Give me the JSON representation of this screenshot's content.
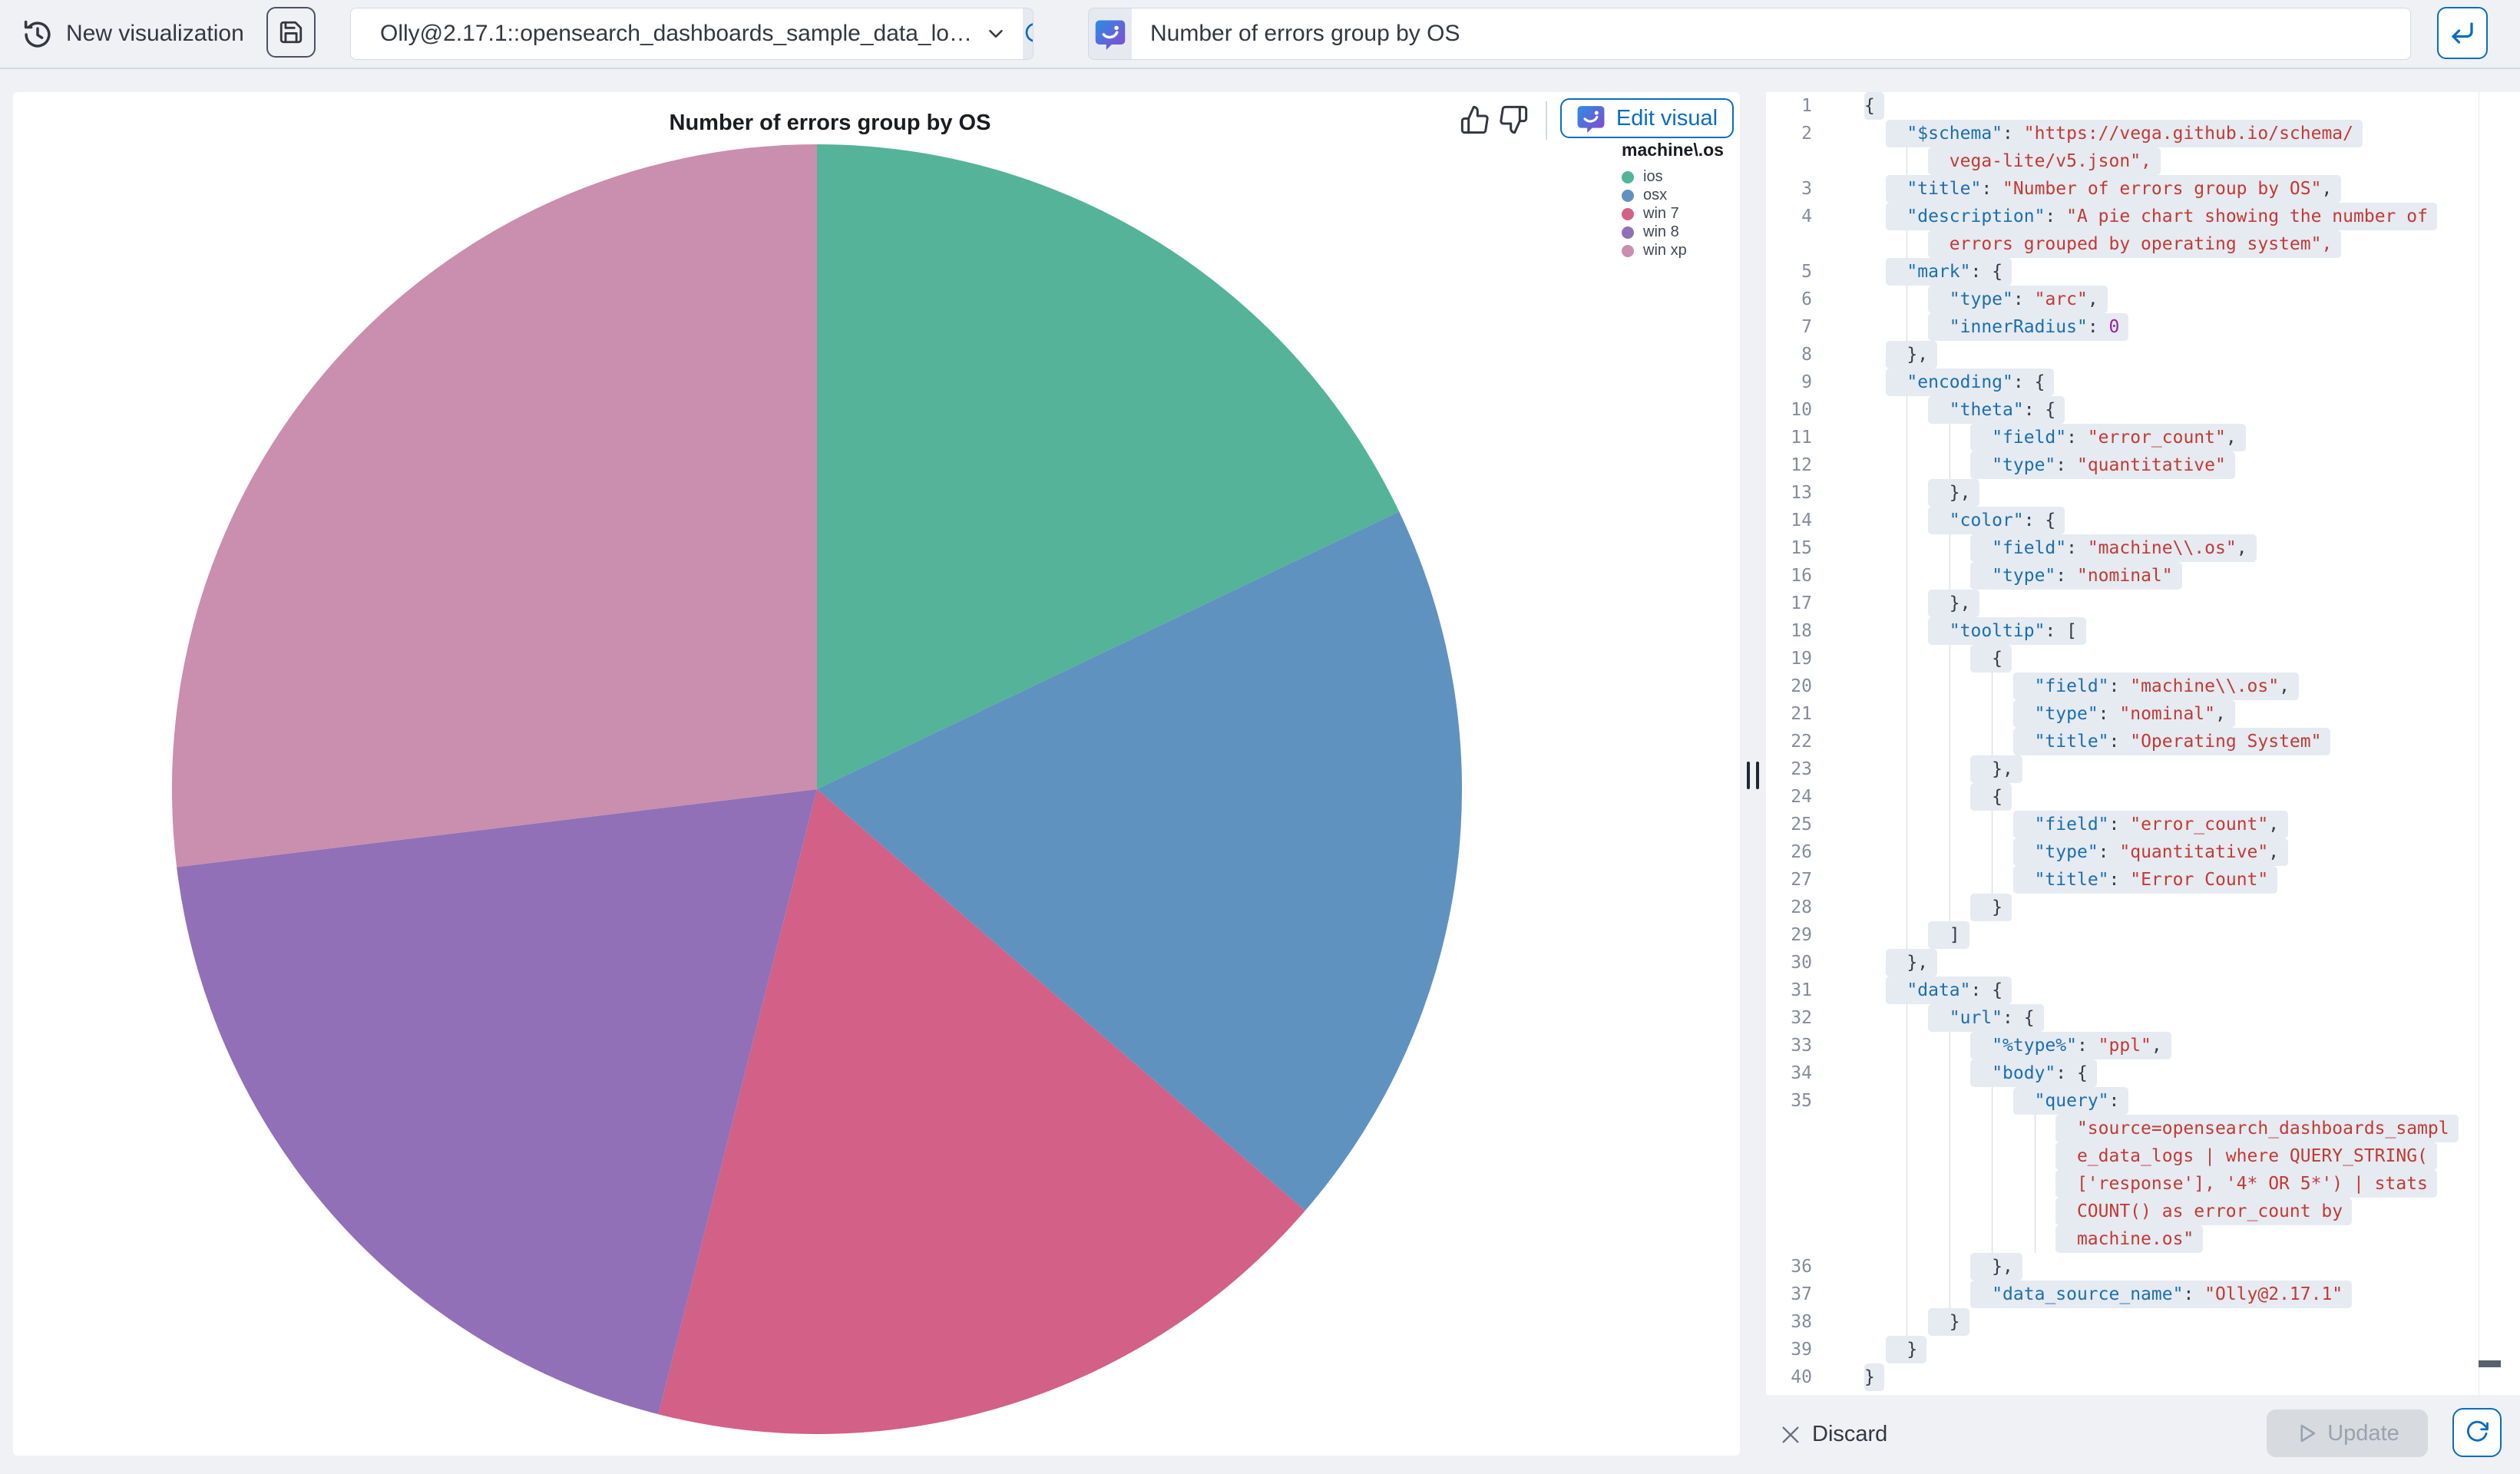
{
  "topbar": {
    "new_viz_label": "New visualization",
    "datasource_value": "Olly@2.17.1::opensearch_dashboards_sample_data_lo…",
    "query_value": "Number of errors group by OS"
  },
  "chart_panel": {
    "title": "Number of errors group by OS",
    "edit_visual_label": "Edit visual",
    "legend": {
      "title": "machine\\.os",
      "items": [
        "ios",
        "osx",
        "win 7",
        "win 8",
        "win xp"
      ]
    }
  },
  "chart_data": {
    "type": "pie",
    "title": "Number of errors group by OS",
    "legend_title": "machine\\.os",
    "categories": [
      "ios",
      "osx",
      "win 7",
      "win 8",
      "win xp"
    ],
    "percentages": [
      17.9,
      18.4,
      17.6,
      19.1,
      26.9
    ],
    "angles_deg": [
      64.5,
      66.2,
      63.5,
      68.9,
      96.9
    ],
    "colors": [
      "#54B399",
      "#6092C0",
      "#D36086",
      "#9170B8",
      "#CA8EAE"
    ],
    "legend_position": "top-right",
    "start_angle_deg": 0,
    "inner_radius": 0
  },
  "editor": {
    "rows": [
      {
        "n": "1",
        "t": "{"
      },
      {
        "n": "2",
        "t": "    \"$schema\": \"https://vega.github.io/schema/"
      },
      {
        "t": "        vega-lite/v5.json\",",
        "c": 1
      },
      {
        "n": "3",
        "t": "    \"title\": \"Number of errors group by OS\","
      },
      {
        "n": "4",
        "t": "    \"description\": \"A pie chart showing the number of"
      },
      {
        "t": "        errors grouped by operating system\",",
        "c": 1
      },
      {
        "n": "5",
        "t": "    \"mark\": {"
      },
      {
        "n": "6",
        "t": "        \"type\": \"arc\","
      },
      {
        "n": "7",
        "t": "        \"innerRadius\": 0"
      },
      {
        "n": "8",
        "t": "    },"
      },
      {
        "n": "9",
        "t": "    \"encoding\": {"
      },
      {
        "n": "10",
        "t": "        \"theta\": {"
      },
      {
        "n": "11",
        "t": "            \"field\": \"error_count\","
      },
      {
        "n": "12",
        "t": "            \"type\": \"quantitative\""
      },
      {
        "n": "13",
        "t": "        },"
      },
      {
        "n": "14",
        "t": "        \"color\": {"
      },
      {
        "n": "15",
        "t": "            \"field\": \"machine\\\\.os\","
      },
      {
        "n": "16",
        "t": "            \"type\": \"nominal\""
      },
      {
        "n": "17",
        "t": "        },"
      },
      {
        "n": "18",
        "t": "        \"tooltip\": ["
      },
      {
        "n": "19",
        "t": "            {"
      },
      {
        "n": "20",
        "t": "                \"field\": \"machine\\\\.os\","
      },
      {
        "n": "21",
        "t": "                \"type\": \"nominal\","
      },
      {
        "n": "22",
        "t": "                \"title\": \"Operating System\""
      },
      {
        "n": "23",
        "t": "            },"
      },
      {
        "n": "24",
        "t": "            {"
      },
      {
        "n": "25",
        "t": "                \"field\": \"error_count\","
      },
      {
        "n": "26",
        "t": "                \"type\": \"quantitative\","
      },
      {
        "n": "27",
        "t": "                \"title\": \"Error Count\""
      },
      {
        "n": "28",
        "t": "            }"
      },
      {
        "n": "29",
        "t": "        ]"
      },
      {
        "n": "30",
        "t": "    },"
      },
      {
        "n": "31",
        "t": "    \"data\": {"
      },
      {
        "n": "32",
        "t": "        \"url\": {"
      },
      {
        "n": "33",
        "t": "            \"%type%\": \"ppl\","
      },
      {
        "n": "34",
        "t": "            \"body\": {"
      },
      {
        "n": "35",
        "t": "                \"query\":"
      },
      {
        "t": "                    \"source=opensearch_dashboards_sampl",
        "c": 1
      },
      {
        "t": "                    e_data_logs | where QUERY_STRING(",
        "c": 1
      },
      {
        "t": "                    ['response'], '4* OR 5*') | stats",
        "c": 1
      },
      {
        "t": "                    COUNT() as error_count by",
        "c": 1
      },
      {
        "t": "                    machine.os\"",
        "c": 1
      },
      {
        "n": "36",
        "t": "            },"
      },
      {
        "n": "37",
        "t": "            \"data_source_name\": \"Olly@2.17.1\""
      },
      {
        "n": "38",
        "t": "        }"
      },
      {
        "n": "39",
        "t": "    }"
      },
      {
        "n": "40",
        "t": "}"
      }
    ]
  },
  "footer": {
    "discard_label": "Discard",
    "update_label": "Update"
  },
  "colors": {
    "accent_blue": "#0a6dc2",
    "page_bg": "#f0f1f4",
    "panel_bg": "#ffffff",
    "selection_chip": "#e6eaf1",
    "code_key": "#1b6fae",
    "code_string": "#c13b34",
    "code_number": "#9b1fa8",
    "assistant_gradient_start": "#2a8de4",
    "assistant_gradient_end": "#8a46cf"
  }
}
